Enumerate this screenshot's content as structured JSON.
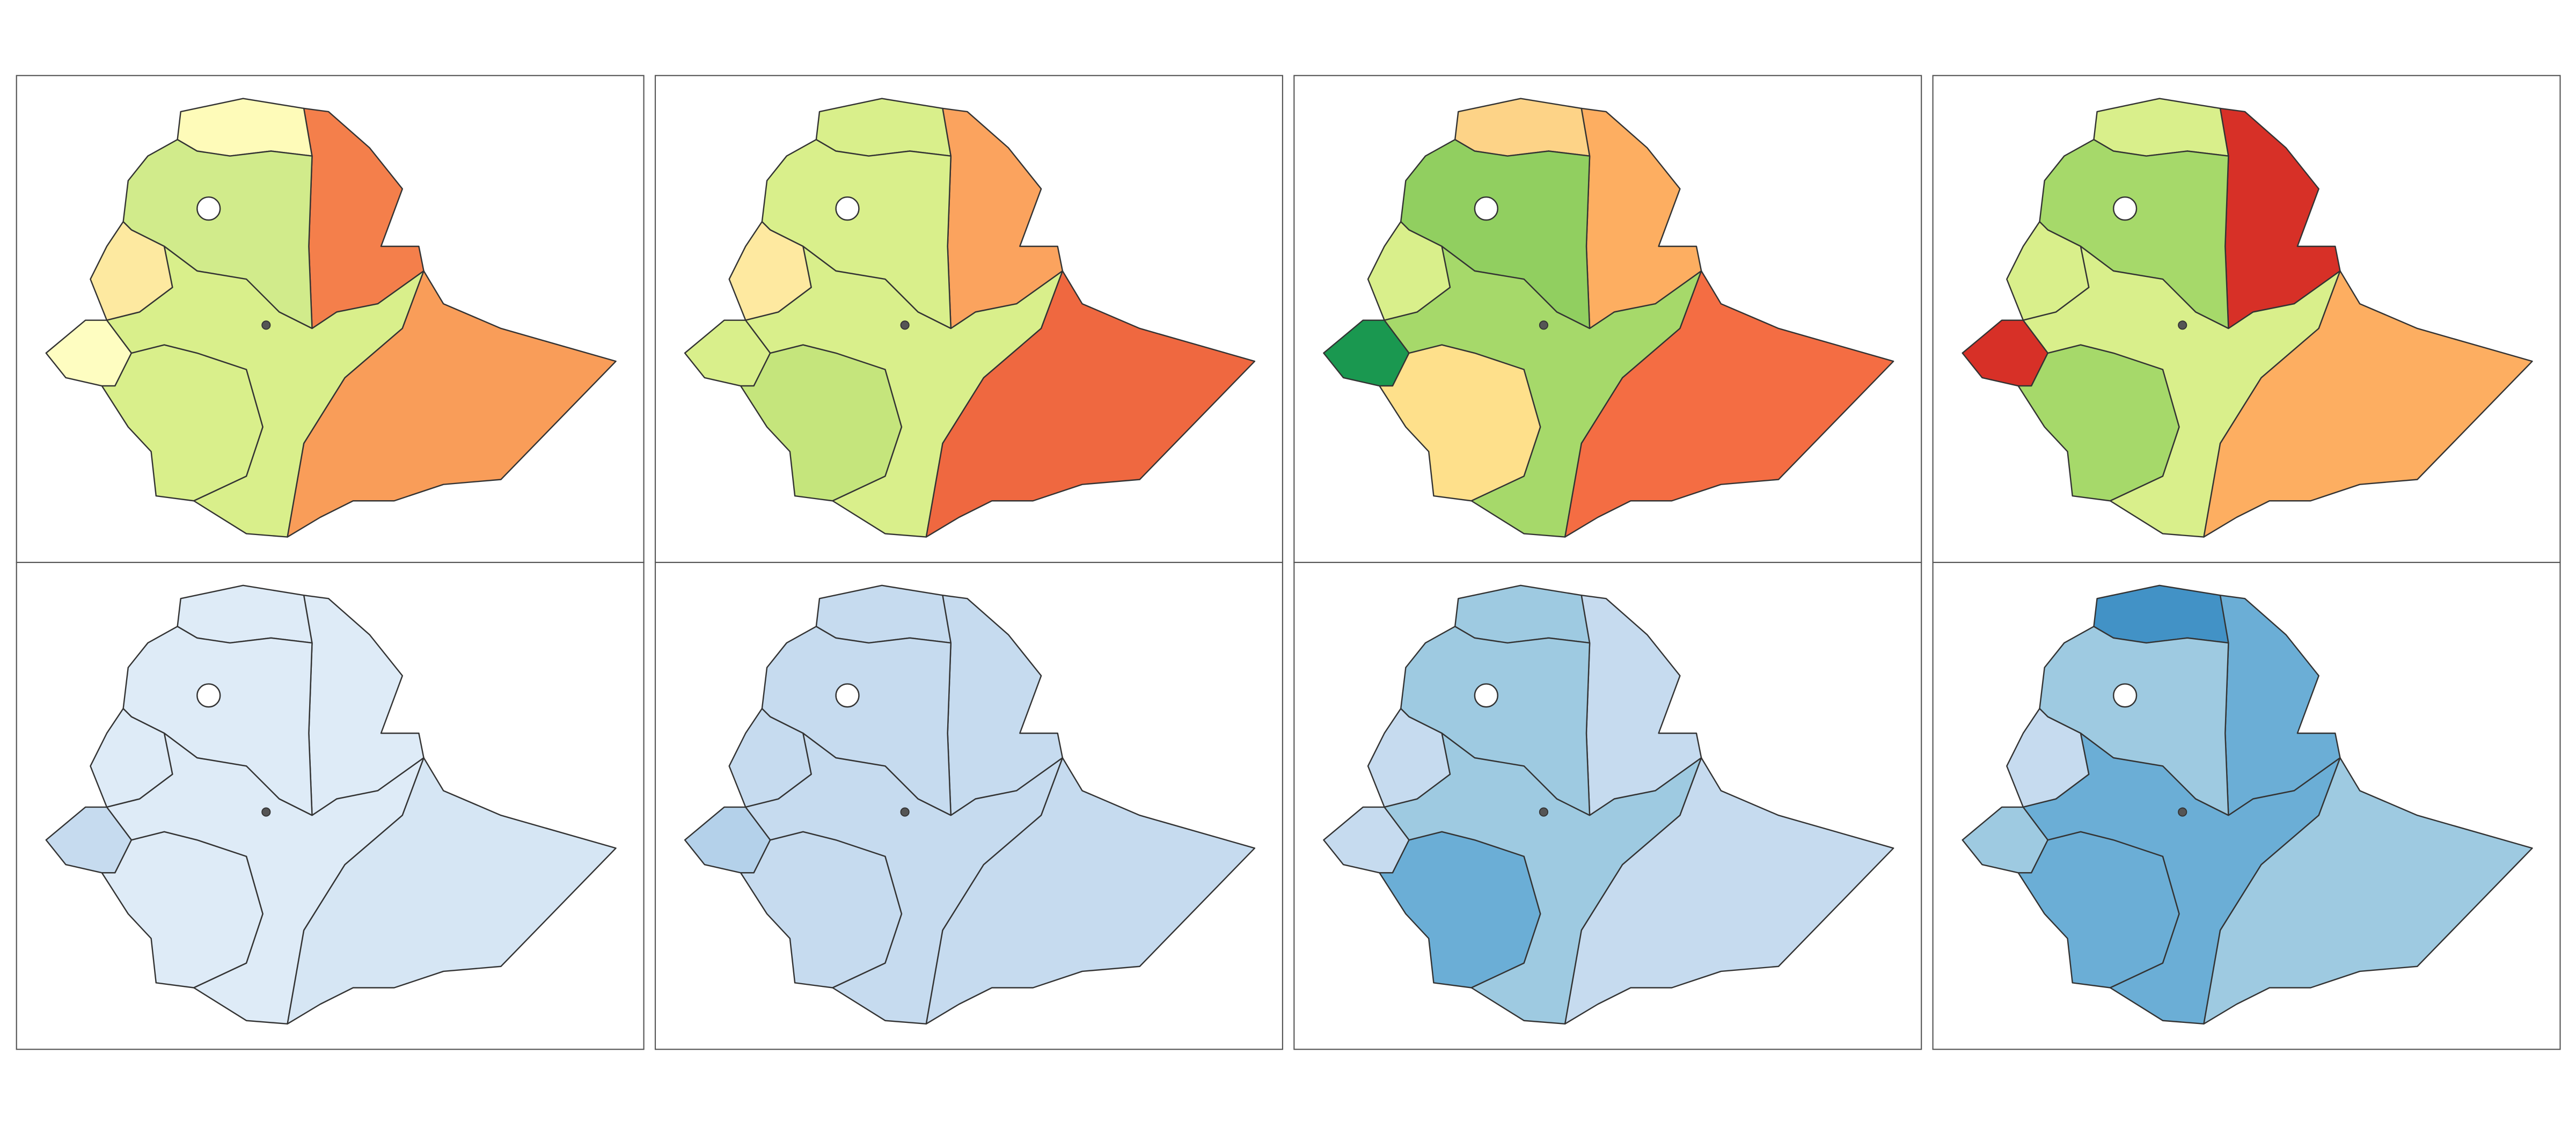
{
  "panels": [
    {
      "fills": [
        "#fefbb9",
        "#f47f4b",
        "#d1eb8b",
        "#fde9a0",
        "#fefdc1",
        "#d9ef8b",
        "#d9ef8b",
        "#f99d59"
      ]
    },
    {
      "fills": [
        "#d9ef8b",
        "#fba35e",
        "#d9ef8b",
        "#fee9a0",
        "#d9ef8b",
        "#c5e57c",
        "#d9ef8b",
        "#ef6840"
      ]
    },
    {
      "fills": [
        "#fdd387",
        "#fdae61",
        "#91cf60",
        "#d9ef8b",
        "#1a9850",
        "#fee08b",
        "#a6d96a",
        "#f46d43"
      ]
    },
    {
      "fills": [
        "#d9ef8b",
        "#d73027",
        "#a6d96a",
        "#d9ef8b",
        "#d73027",
        "#a6d96a",
        "#d9ef8b",
        "#fdae61"
      ]
    },
    {
      "fills": [
        "#deebf7",
        "#deebf7",
        "#deebf7",
        "#deebf7",
        "#c6dbef",
        "#deebf7",
        "#deebf7",
        "#d6e6f4"
      ]
    },
    {
      "fills": [
        "#c6dbef",
        "#c6dbef",
        "#c6dbef",
        "#c6dbef",
        "#b4d1ea",
        "#c6dbef",
        "#c6dbef",
        "#c6dbef"
      ]
    },
    {
      "fills": [
        "#9ecae1",
        "#c6dbef",
        "#9ecae1",
        "#c6dbef",
        "#c6dbef",
        "#6baed6",
        "#9ecae1",
        "#c6dbef"
      ]
    },
    {
      "fills": [
        "#4292c6",
        "#6baed6",
        "#9ecae1",
        "#c6dbef",
        "#9ecae1",
        "#6baed6",
        "#6baed6",
        "#9ecae1"
      ]
    }
  ]
}
